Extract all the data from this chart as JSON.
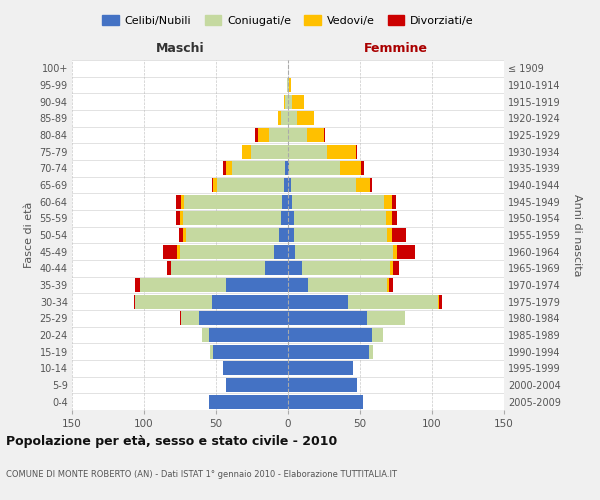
{
  "age_groups": [
    "0-4",
    "5-9",
    "10-14",
    "15-19",
    "20-24",
    "25-29",
    "30-34",
    "35-39",
    "40-44",
    "45-49",
    "50-54",
    "55-59",
    "60-64",
    "65-69",
    "70-74",
    "75-79",
    "80-84",
    "85-89",
    "90-94",
    "95-99",
    "100+"
  ],
  "birth_years": [
    "2005-2009",
    "2000-2004",
    "1995-1999",
    "1990-1994",
    "1985-1989",
    "1980-1984",
    "1975-1979",
    "1970-1974",
    "1965-1969",
    "1960-1964",
    "1955-1959",
    "1950-1954",
    "1945-1949",
    "1940-1944",
    "1935-1939",
    "1930-1934",
    "1925-1929",
    "1920-1924",
    "1915-1919",
    "1910-1914",
    "≤ 1909"
  ],
  "males": {
    "celibi": [
      55,
      43,
      45,
      52,
      55,
      62,
      53,
      43,
      16,
      10,
      6,
      5,
      4,
      3,
      2,
      0,
      0,
      0,
      0,
      0,
      0
    ],
    "coniugati": [
      0,
      0,
      0,
      2,
      5,
      12,
      53,
      60,
      65,
      65,
      65,
      68,
      68,
      46,
      37,
      26,
      13,
      5,
      2,
      1,
      0
    ],
    "vedovi": [
      0,
      0,
      0,
      0,
      0,
      0,
      0,
      0,
      0,
      2,
      2,
      2,
      2,
      3,
      4,
      6,
      8,
      2,
      1,
      0,
      0
    ],
    "divorziati": [
      0,
      0,
      0,
      0,
      0,
      1,
      1,
      3,
      3,
      10,
      3,
      3,
      4,
      1,
      2,
      0,
      2,
      0,
      0,
      0,
      0
    ]
  },
  "females": {
    "nubili": [
      52,
      48,
      45,
      56,
      58,
      55,
      42,
      14,
      10,
      5,
      4,
      4,
      3,
      2,
      1,
      0,
      0,
      0,
      0,
      0,
      0
    ],
    "coniugate": [
      0,
      0,
      0,
      3,
      8,
      26,
      62,
      55,
      61,
      68,
      65,
      64,
      64,
      45,
      35,
      27,
      13,
      6,
      3,
      1,
      0
    ],
    "vedove": [
      0,
      0,
      0,
      0,
      0,
      0,
      1,
      1,
      2,
      3,
      3,
      4,
      5,
      10,
      15,
      20,
      12,
      12,
      8,
      1,
      0
    ],
    "divorziate": [
      0,
      0,
      0,
      0,
      0,
      0,
      2,
      3,
      4,
      12,
      10,
      4,
      3,
      1,
      2,
      1,
      1,
      0,
      0,
      0,
      0
    ]
  },
  "color_celibi": "#4472c4",
  "color_coniugati": "#c5d9a0",
  "color_vedovi": "#ffc000",
  "color_divorziati": "#cc0000",
  "xlim": 150,
  "title": "Popolazione per età, sesso e stato civile - 2010",
  "subtitle": "COMUNE DI MONTE ROBERTO (AN) - Dati ISTAT 1° gennaio 2010 - Elaborazione TUTTITALIA.IT",
  "ylabel_left": "Fasce di età",
  "ylabel_right": "Anni di nascita",
  "xlabel_left": "Maschi",
  "xlabel_right": "Femmine",
  "bg_color": "#f0f0f0",
  "plot_bg_color": "#ffffff"
}
